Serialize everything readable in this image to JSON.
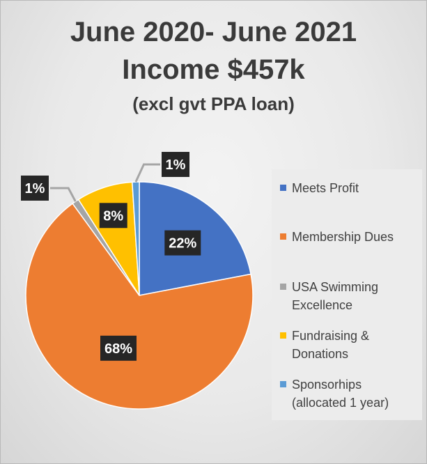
{
  "title": {
    "line1": "June 2020- June 2021",
    "line2": "Income $457k",
    "line3": "(excl gvt PPA loan)"
  },
  "chart_data": {
    "type": "pie",
    "slices": [
      {
        "label": "Meets Profit",
        "value": 22,
        "data_label": "22%",
        "color": "#4472c4"
      },
      {
        "label": "Membership Dues",
        "value": 68,
        "data_label": "68%",
        "color": "#ed7d31"
      },
      {
        "label": "USA Swimming Excellence",
        "value": 1,
        "data_label": "1%",
        "color": "#a5a5a5"
      },
      {
        "label": "Fundraising & Donations",
        "value": 8,
        "data_label": "8%",
        "color": "#ffc000"
      },
      {
        "label": "Sponsorhips (allocated 1 year)",
        "value": 1,
        "data_label": "1%",
        "color": "#5b9bd5"
      }
    ],
    "legend_position": "right",
    "label_style": "white text on dark boxes"
  },
  "legend": {
    "items": [
      {
        "line1": "Meets Profit",
        "line2": "",
        "color": "#4472c4",
        "icon": "square-swatch"
      },
      {
        "line1": "Membership Dues",
        "line2": "",
        "color": "#ed7d31",
        "icon": "square-swatch"
      },
      {
        "line1": "USA Swimming",
        "line2": "Excellence",
        "color": "#a5a5a5",
        "icon": "square-swatch"
      },
      {
        "line1": "Fundraising &",
        "line2": "Donations",
        "color": "#ffc000",
        "icon": "square-swatch"
      },
      {
        "line1": "Sponsorhips",
        "line2": "(allocated 1 year)",
        "color": "#5b9bd5",
        "icon": "square-swatch"
      }
    ]
  },
  "colors": {
    "label_box": "#262626",
    "label_text": "#ffffff",
    "leader_line": "#a5a5a5"
  }
}
